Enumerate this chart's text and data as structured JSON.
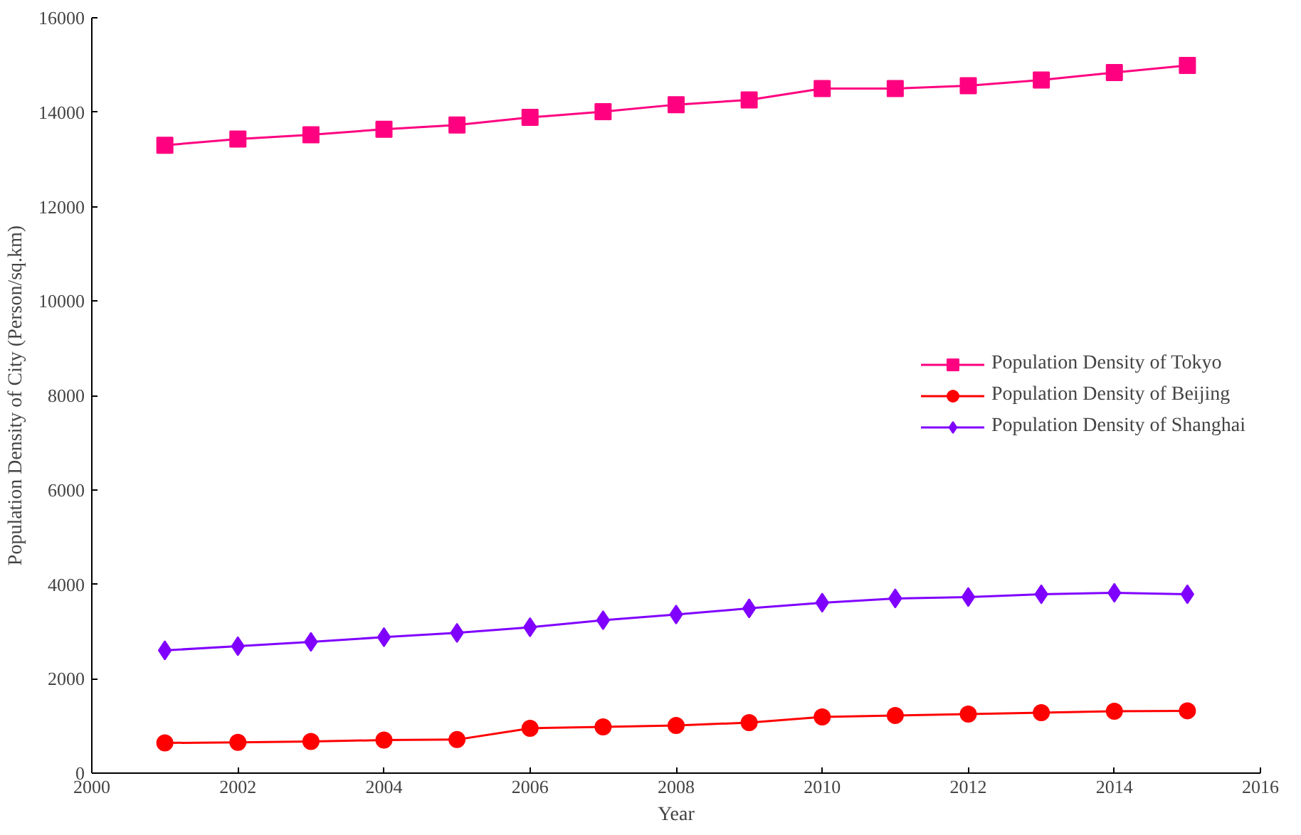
{
  "chart_data": {
    "type": "line",
    "xlabel": "Year",
    "ylabel": "Population Density of City (Person/sq.km)",
    "x": [
      2001,
      2002,
      2003,
      2004,
      2005,
      2006,
      2007,
      2008,
      2009,
      2010,
      2011,
      2012,
      2013,
      2014,
      2015
    ],
    "xlim": [
      2000,
      2016
    ],
    "xticks": [
      2000,
      2002,
      2004,
      2006,
      2008,
      2010,
      2012,
      2014,
      2016
    ],
    "ylim": [
      0,
      16000
    ],
    "yticks": [
      0,
      2000,
      4000,
      6000,
      8000,
      10000,
      12000,
      14000,
      16000
    ],
    "grid": false,
    "legend": "right",
    "line_style": "solid",
    "series": [
      {
        "name": "Population Density of Tokyo",
        "color": "#ff0080",
        "marker": "square",
        "values": [
          13300,
          13430,
          13520,
          13640,
          13730,
          13890,
          14010,
          14160,
          14260,
          14500,
          14500,
          14560,
          14680,
          14840,
          14990
        ]
      },
      {
        "name": "Population Density of Beijing",
        "color": "#ff0000",
        "marker": "circle",
        "values": [
          640,
          650,
          670,
          700,
          710,
          950,
          980,
          1010,
          1070,
          1190,
          1220,
          1250,
          1280,
          1310,
          1320
        ]
      },
      {
        "name": "Population Density of Shanghai",
        "color": "#8000ff",
        "marker": "diamond",
        "values": [
          2600,
          2690,
          2780,
          2880,
          2970,
          3090,
          3240,
          3360,
          3490,
          3610,
          3700,
          3730,
          3790,
          3820,
          3790
        ]
      }
    ]
  }
}
